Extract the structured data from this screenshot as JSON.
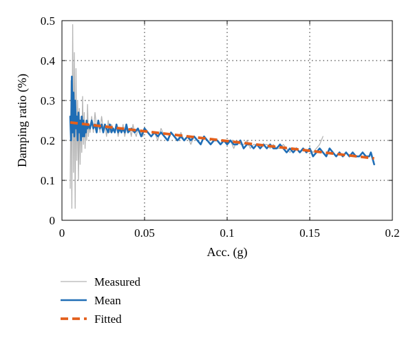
{
  "chart_data": {
    "type": "line",
    "xlabel": "Acc. (g)",
    "ylabel": "Damping ratio (%)",
    "xlim": [
      0,
      0.2
    ],
    "ylim": [
      0,
      0.5
    ],
    "x_ticks": [
      0,
      0.05,
      0.1,
      0.15,
      0.2
    ],
    "x_tick_labels": [
      "0",
      "0.05",
      "0.1",
      "0.15",
      "0.2"
    ],
    "y_ticks": [
      0,
      0.1,
      0.2,
      0.3,
      0.4,
      0.5
    ],
    "y_tick_labels": [
      "0",
      "0.1",
      "0.2",
      "0.3",
      "0.4",
      "0.5"
    ],
    "grid": true,
    "legend_position": "bottom-left, outside plot",
    "series": [
      {
        "name": "Measured",
        "color": "#b4b4b4",
        "style": "solid-thin",
        "x": [
          0.005,
          0.0055,
          0.006,
          0.0065,
          0.007,
          0.0075,
          0.008,
          0.0085,
          0.009,
          0.0095,
          0.01,
          0.0105,
          0.011,
          0.0115,
          0.012,
          0.0125,
          0.013,
          0.0135,
          0.014,
          0.0145,
          0.015,
          0.0155,
          0.016,
          0.0165,
          0.017,
          0.018,
          0.019,
          0.02,
          0.021,
          0.022,
          0.023,
          0.024,
          0.025,
          0.026,
          0.027,
          0.028,
          0.029,
          0.03,
          0.031,
          0.032,
          0.033,
          0.034,
          0.035,
          0.036,
          0.037,
          0.038,
          0.039,
          0.04,
          0.041,
          0.042,
          0.043,
          0.044,
          0.045,
          0.046,
          0.047,
          0.048,
          0.049,
          0.05,
          0.052,
          0.054,
          0.056,
          0.058,
          0.06,
          0.062,
          0.064,
          0.066,
          0.068,
          0.07,
          0.072,
          0.074,
          0.076,
          0.078,
          0.08,
          0.082,
          0.084,
          0.086,
          0.088,
          0.09,
          0.092,
          0.094,
          0.096,
          0.098,
          0.1,
          0.102,
          0.104,
          0.106,
          0.108,
          0.11,
          0.112,
          0.114,
          0.116,
          0.118,
          0.12,
          0.122,
          0.124,
          0.126,
          0.128,
          0.13,
          0.132,
          0.134,
          0.136,
          0.138,
          0.14,
          0.142,
          0.144,
          0.146,
          0.148,
          0.15,
          0.152,
          0.154,
          0.156,
          0.158
        ],
        "y": [
          0.08,
          0.35,
          0.03,
          0.49,
          0.12,
          0.42,
          0.03,
          0.38,
          0.15,
          0.3,
          0.1,
          0.28,
          0.14,
          0.26,
          0.17,
          0.31,
          0.19,
          0.27,
          0.18,
          0.25,
          0.2,
          0.29,
          0.21,
          0.24,
          0.22,
          0.26,
          0.22,
          0.27,
          0.23,
          0.25,
          0.22,
          0.26,
          0.23,
          0.24,
          0.21,
          0.25,
          0.22,
          0.24,
          0.23,
          0.22,
          0.24,
          0.21,
          0.23,
          0.22,
          0.24,
          0.21,
          0.23,
          0.22,
          0.23,
          0.21,
          0.24,
          0.22,
          0.21,
          0.23,
          0.22,
          0.22,
          0.21,
          0.23,
          0.22,
          0.21,
          0.22,
          0.2,
          0.23,
          0.21,
          0.2,
          0.22,
          0.21,
          0.2,
          0.22,
          0.2,
          0.21,
          0.19,
          0.21,
          0.2,
          0.19,
          0.21,
          0.2,
          0.19,
          0.2,
          0.2,
          0.19,
          0.2,
          0.19,
          0.2,
          0.18,
          0.2,
          0.19,
          0.19,
          0.2,
          0.18,
          0.19,
          0.19,
          0.18,
          0.19,
          0.19,
          0.18,
          0.19,
          0.18,
          0.18,
          0.19,
          0.18,
          0.17,
          0.18,
          0.18,
          0.17,
          0.18,
          0.17,
          0.18,
          0.17,
          0.18,
          0.19,
          0.21
        ]
      },
      {
        "name": "Mean",
        "color": "#1f6db5",
        "style": "solid-thick",
        "x": [
          0.005,
          0.0055,
          0.006,
          0.0065,
          0.007,
          0.0075,
          0.008,
          0.0085,
          0.009,
          0.0095,
          0.01,
          0.0105,
          0.011,
          0.0115,
          0.012,
          0.0125,
          0.013,
          0.0135,
          0.014,
          0.0145,
          0.015,
          0.0155,
          0.016,
          0.017,
          0.018,
          0.019,
          0.02,
          0.021,
          0.022,
          0.023,
          0.024,
          0.025,
          0.026,
          0.027,
          0.028,
          0.029,
          0.03,
          0.031,
          0.032,
          0.033,
          0.034,
          0.035,
          0.036,
          0.037,
          0.038,
          0.039,
          0.04,
          0.042,
          0.044,
          0.046,
          0.048,
          0.05,
          0.052,
          0.054,
          0.056,
          0.058,
          0.06,
          0.062,
          0.064,
          0.066,
          0.068,
          0.07,
          0.072,
          0.074,
          0.076,
          0.078,
          0.08,
          0.082,
          0.084,
          0.086,
          0.088,
          0.09,
          0.092,
          0.094,
          0.096,
          0.098,
          0.1,
          0.102,
          0.104,
          0.106,
          0.108,
          0.11,
          0.112,
          0.114,
          0.116,
          0.118,
          0.12,
          0.122,
          0.124,
          0.126,
          0.128,
          0.13,
          0.132,
          0.134,
          0.136,
          0.138,
          0.14,
          0.142,
          0.144,
          0.146,
          0.148,
          0.15,
          0.152,
          0.154,
          0.156,
          0.158,
          0.16,
          0.162,
          0.164,
          0.166,
          0.168,
          0.17,
          0.172,
          0.174,
          0.176,
          0.178,
          0.18,
          0.182,
          0.184,
          0.186,
          0.187,
          0.188,
          0.189
        ],
        "y": [
          0.26,
          0.2,
          0.36,
          0.22,
          0.32,
          0.21,
          0.3,
          0.23,
          0.26,
          0.2,
          0.27,
          0.22,
          0.25,
          0.2,
          0.26,
          0.21,
          0.25,
          0.21,
          0.24,
          0.22,
          0.25,
          0.23,
          0.24,
          0.23,
          0.25,
          0.23,
          0.24,
          0.22,
          0.25,
          0.23,
          0.24,
          0.22,
          0.24,
          0.23,
          0.22,
          0.24,
          0.22,
          0.23,
          0.22,
          0.24,
          0.22,
          0.23,
          0.22,
          0.23,
          0.22,
          0.24,
          0.22,
          0.23,
          0.22,
          0.23,
          0.21,
          0.23,
          0.22,
          0.21,
          0.22,
          0.21,
          0.22,
          0.21,
          0.2,
          0.22,
          0.21,
          0.2,
          0.21,
          0.2,
          0.21,
          0.2,
          0.21,
          0.2,
          0.19,
          0.21,
          0.2,
          0.19,
          0.2,
          0.2,
          0.19,
          0.2,
          0.19,
          0.2,
          0.19,
          0.19,
          0.2,
          0.18,
          0.19,
          0.19,
          0.18,
          0.19,
          0.18,
          0.19,
          0.18,
          0.19,
          0.18,
          0.18,
          0.19,
          0.18,
          0.17,
          0.18,
          0.17,
          0.18,
          0.17,
          0.18,
          0.17,
          0.18,
          0.16,
          0.17,
          0.18,
          0.17,
          0.16,
          0.18,
          0.17,
          0.16,
          0.17,
          0.16,
          0.17,
          0.16,
          0.17,
          0.16,
          0.16,
          0.17,
          0.16,
          0.16,
          0.17,
          0.155,
          0.14
        ]
      },
      {
        "name": "Fitted",
        "color": "#e35f1b",
        "style": "dashed",
        "x": [
          0.005,
          0.189
        ],
        "y": [
          0.245,
          0.155
        ]
      }
    ]
  }
}
